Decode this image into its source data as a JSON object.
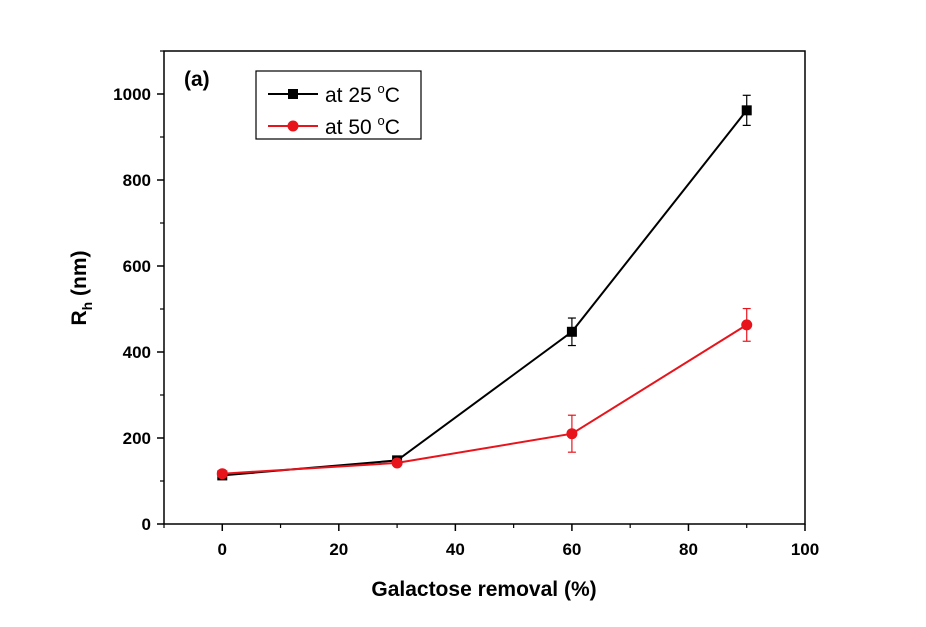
{
  "chart_data": {
    "type": "line",
    "panel_label": "(a)",
    "xlabel": "Galactose removal (%)",
    "ylabel_main": "R",
    "ylabel_sub": "h",
    "ylabel_unit": " (nm)",
    "xlim": [
      -10,
      100
    ],
    "ylim": [
      0,
      1100
    ],
    "xticks": [
      0,
      20,
      40,
      60,
      80,
      100
    ],
    "yticks": [
      0,
      200,
      400,
      600,
      800,
      1000
    ],
    "grid": false,
    "legend_position": "top-left",
    "x": [
      0,
      30,
      60,
      90
    ],
    "series": [
      {
        "name_prefix": "at 25 ",
        "name_sup": "o",
        "name_suffix": "C",
        "color": "#000000",
        "marker": "square",
        "values": [
          113,
          148,
          447,
          962
        ],
        "errors": [
          6,
          8,
          32,
          35
        ]
      },
      {
        "name_prefix": "at 50 ",
        "name_sup": "o",
        "name_suffix": "C",
        "color": "#e8141c",
        "marker": "circle",
        "values": [
          117,
          142,
          210,
          463
        ],
        "errors": [
          5,
          6,
          43,
          38
        ]
      }
    ]
  }
}
